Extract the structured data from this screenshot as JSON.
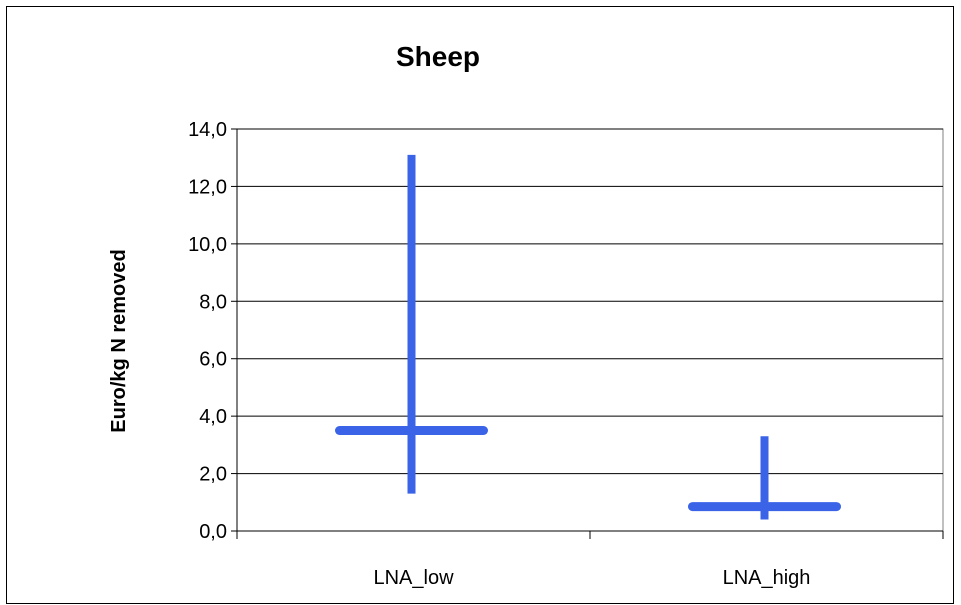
{
  "chart_data": {
    "type": "range",
    "title": "Sheep",
    "xlabel": "",
    "ylabel": "Euro/kg N removed",
    "ylim": [
      0,
      14
    ],
    "ytick_values": [
      0,
      2,
      4,
      6,
      8,
      10,
      12,
      14
    ],
    "ytick_labels": [
      "0,0",
      "2,0",
      "4,0",
      "6,0",
      "8,0",
      "10,0",
      "12,0",
      "14,0"
    ],
    "grid": true,
    "categories": [
      "LNA_low",
      "LNA_high"
    ],
    "series": [
      {
        "low": 1.3,
        "high": 13.1,
        "mid": 3.5
      },
      {
        "low": 0.4,
        "high": 3.3,
        "mid": 0.85
      }
    ],
    "colors": {
      "marker": "#3a63e8",
      "grid": "#000000",
      "plot_border": "#808080"
    }
  }
}
